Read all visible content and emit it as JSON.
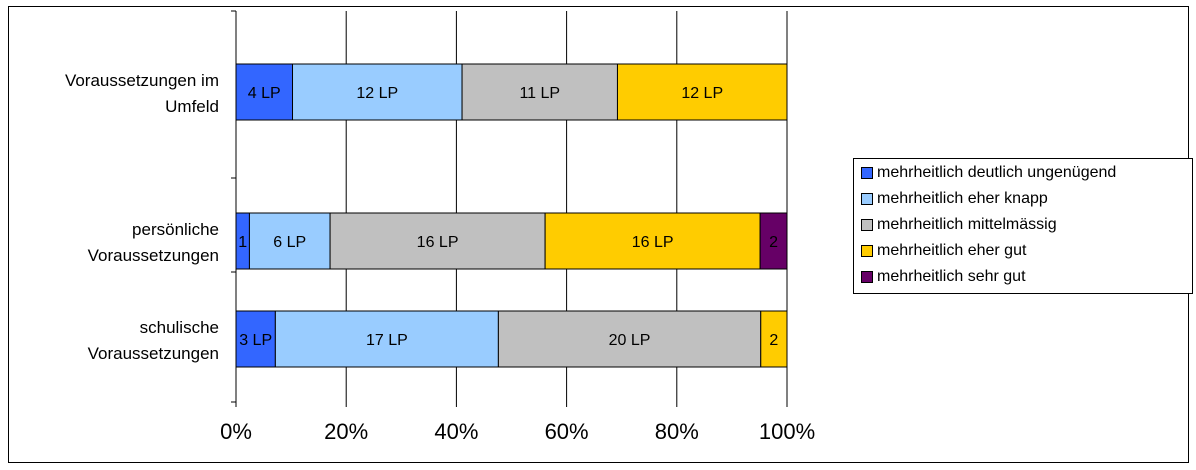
{
  "chart_data": {
    "type": "bar",
    "orientation": "horizontal",
    "stacked": "percent",
    "categories": [
      "Voraussetzungen im Umfeld",
      "persönliche Voraussetzungen",
      "schulische Voraussetzungen"
    ],
    "category_lines": [
      [
        "Voraussetzungen im",
        "Umfeld"
      ],
      [
        "persönliche",
        "Voraussetzungen"
      ],
      [
        "schulische",
        "Voraussetzungen"
      ]
    ],
    "series": [
      {
        "name": "mehrheitlich deutlich ungenügend",
        "color": "#3366FF",
        "values": [
          4,
          1,
          3
        ],
        "labels": [
          "4 LP",
          "1",
          "3 LP"
        ]
      },
      {
        "name": "mehrheitlich eher knapp",
        "color": "#99CCFF",
        "values": [
          12,
          6,
          17
        ],
        "labels": [
          "12 LP",
          "6 LP",
          "17 LP"
        ]
      },
      {
        "name": "mehrheitlich mittelmässig",
        "color": "#C0C0C0",
        "values": [
          11,
          16,
          20
        ],
        "labels": [
          "11 LP",
          "16 LP",
          "20 LP"
        ]
      },
      {
        "name": "mehrheitlich eher gut",
        "color": "#FFCC00",
        "values": [
          12,
          16,
          2
        ],
        "labels": [
          "12 LP",
          "16 LP",
          "2"
        ]
      },
      {
        "name": "mehrheitlich sehr gut",
        "color": "#660066",
        "values": [
          0,
          2,
          0
        ],
        "labels": [
          "",
          "2",
          ""
        ]
      }
    ],
    "xticks": [
      "0%",
      "20%",
      "40%",
      "60%",
      "80%",
      "100%"
    ],
    "xlim": [
      0,
      100
    ],
    "grid": true,
    "legend_position": "right"
  }
}
